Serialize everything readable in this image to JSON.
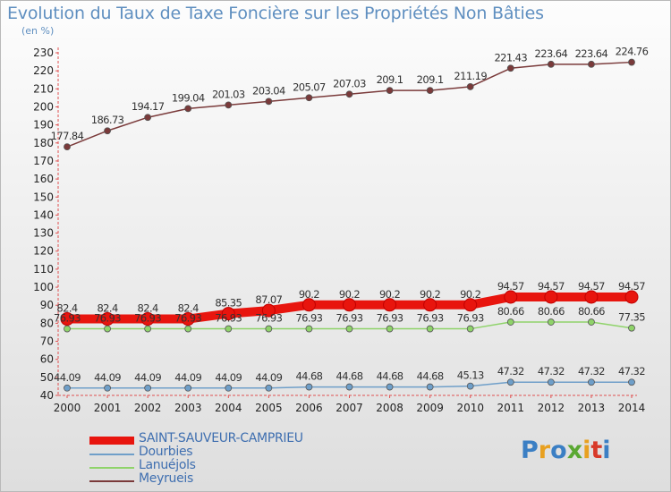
{
  "title": "Evolution du Taux de Taxe Foncière sur les Propriétés Non Bâties",
  "unit": "(en %)",
  "brand": {
    "name": "Proxiti",
    "colors": [
      "#3b7fc4",
      "#e8a020",
      "#3b7fc4",
      "#5aa832",
      "#e8a020",
      "#d83a2a",
      "#3b7fc4"
    ]
  },
  "chart_data": {
    "type": "line",
    "title": "Evolution du Taux de Taxe Foncière sur les Propriétés Non Bâties",
    "ylabel": "(en %)",
    "xlabel": "",
    "x": [
      "2000",
      "2001",
      "2002",
      "2003",
      "2004",
      "2005",
      "2006",
      "2007",
      "2008",
      "2009",
      "2010",
      "2011",
      "2012",
      "2013",
      "2014"
    ],
    "ylim": [
      40,
      230
    ],
    "yticks": [
      40,
      50,
      60,
      70,
      80,
      90,
      100,
      110,
      120,
      130,
      140,
      150,
      160,
      170,
      180,
      190,
      200,
      210,
      220,
      230
    ],
    "grid": false,
    "legend_position": "bottom-left",
    "series": [
      {
        "name": "SAINT-SAUVEUR-CAMPRIEU",
        "color": "#e8150e",
        "width": 10,
        "values": [
          82.4,
          82.4,
          82.4,
          82.4,
          85.35,
          87.07,
          90.2,
          90.2,
          90.2,
          90.2,
          90.2,
          94.57,
          94.57,
          94.57,
          94.57
        ],
        "labels": [
          "82.4",
          "82.4",
          "82.4",
          "82.4",
          "85.35",
          "87.07",
          "90.2",
          "90.2",
          "90.2",
          "90.2",
          "90.2",
          "94.57",
          "94.57",
          "94.57",
          "94.57"
        ]
      },
      {
        "name": "Dourbies",
        "color": "#6f9fc9",
        "width": 1.5,
        "values": [
          44.09,
          44.09,
          44.09,
          44.09,
          44.09,
          44.09,
          44.68,
          44.68,
          44.68,
          44.68,
          45.13,
          47.32,
          47.32,
          47.32,
          47.32
        ],
        "labels": [
          "44.09",
          "44.09",
          "44.09",
          "44.09",
          "44.09",
          "44.09",
          "44.68",
          "44.68",
          "44.68",
          "44.68",
          "45.13",
          "47.32",
          "47.32",
          "47.32",
          "47.32"
        ]
      },
      {
        "name": "Lanuéjols",
        "color": "#8fd36a",
        "width": 1.5,
        "values": [
          76.93,
          76.93,
          76.93,
          76.93,
          76.93,
          76.93,
          76.93,
          76.93,
          76.93,
          76.93,
          76.93,
          80.66,
          80.66,
          80.66,
          77.35
        ],
        "labels": [
          "76.93",
          "76.93",
          "76.93",
          "76.93",
          "76.93",
          "76.93",
          "76.93",
          "76.93",
          "76.93",
          "76.93",
          "76.93",
          "80.66",
          "80.66",
          "80.66",
          "77.35"
        ]
      },
      {
        "name": "Meyrueis",
        "color": "#7a3a3a",
        "width": 1.5,
        "values": [
          177.84,
          186.73,
          194.17,
          199.04,
          201.03,
          203.04,
          205.07,
          207.03,
          209.1,
          209.1,
          211.19,
          221.43,
          223.64,
          223.64,
          224.76
        ],
        "labels": [
          "177.84",
          "186.73",
          "194.17",
          "199.04",
          "201.03",
          "203.04",
          "205.07",
          "207.03",
          "209.1",
          "209.1",
          "211.19",
          "221.43",
          "223.64",
          "223.64",
          "224.76"
        ]
      }
    ]
  }
}
